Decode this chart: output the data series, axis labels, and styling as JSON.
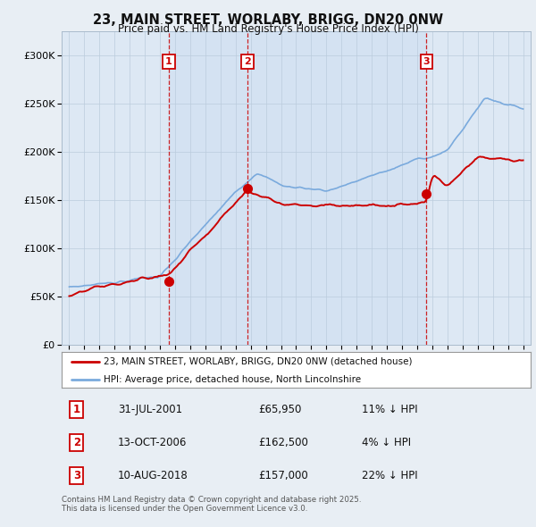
{
  "title": "23, MAIN STREET, WORLABY, BRIGG, DN20 0NW",
  "subtitle": "Price paid vs. HM Land Registry's House Price Index (HPI)",
  "hpi_label": "HPI: Average price, detached house, North Lincolnshire",
  "property_label": "23, MAIN STREET, WORLABY, BRIGG, DN20 0NW (detached house)",
  "sale_points": [
    {
      "date_num": 2001.58,
      "price": 65950,
      "label": "1"
    },
    {
      "date_num": 2006.79,
      "price": 162500,
      "label": "2"
    },
    {
      "date_num": 2018.61,
      "price": 157000,
      "label": "3"
    }
  ],
  "sale_labels_table": [
    {
      "num": "1",
      "date": "31-JUL-2001",
      "price": "£65,950",
      "pct": "11% ↓ HPI"
    },
    {
      "num": "2",
      "date": "13-OCT-2006",
      "price": "£162,500",
      "pct": "4% ↓ HPI"
    },
    {
      "num": "3",
      "date": "10-AUG-2018",
      "price": "£157,000",
      "pct": "22% ↓ HPI"
    }
  ],
  "vline_dates": [
    2001.58,
    2006.79,
    2018.61
  ],
  "ylim": [
    0,
    325000
  ],
  "xlim_start": 1994.5,
  "xlim_end": 2025.5,
  "property_color": "#cc0000",
  "hpi_color": "#7aaadd",
  "vline_color": "#cc0000",
  "background_color": "#e8eef4",
  "plot_bg_color": "#dde8f4",
  "grid_color": "#bbccdd",
  "legend_bg": "#ffffff",
  "table_bg": "#ffffff",
  "footnote": "Contains HM Land Registry data © Crown copyright and database right 2025.\nThis data is licensed under the Open Government Licence v3.0."
}
